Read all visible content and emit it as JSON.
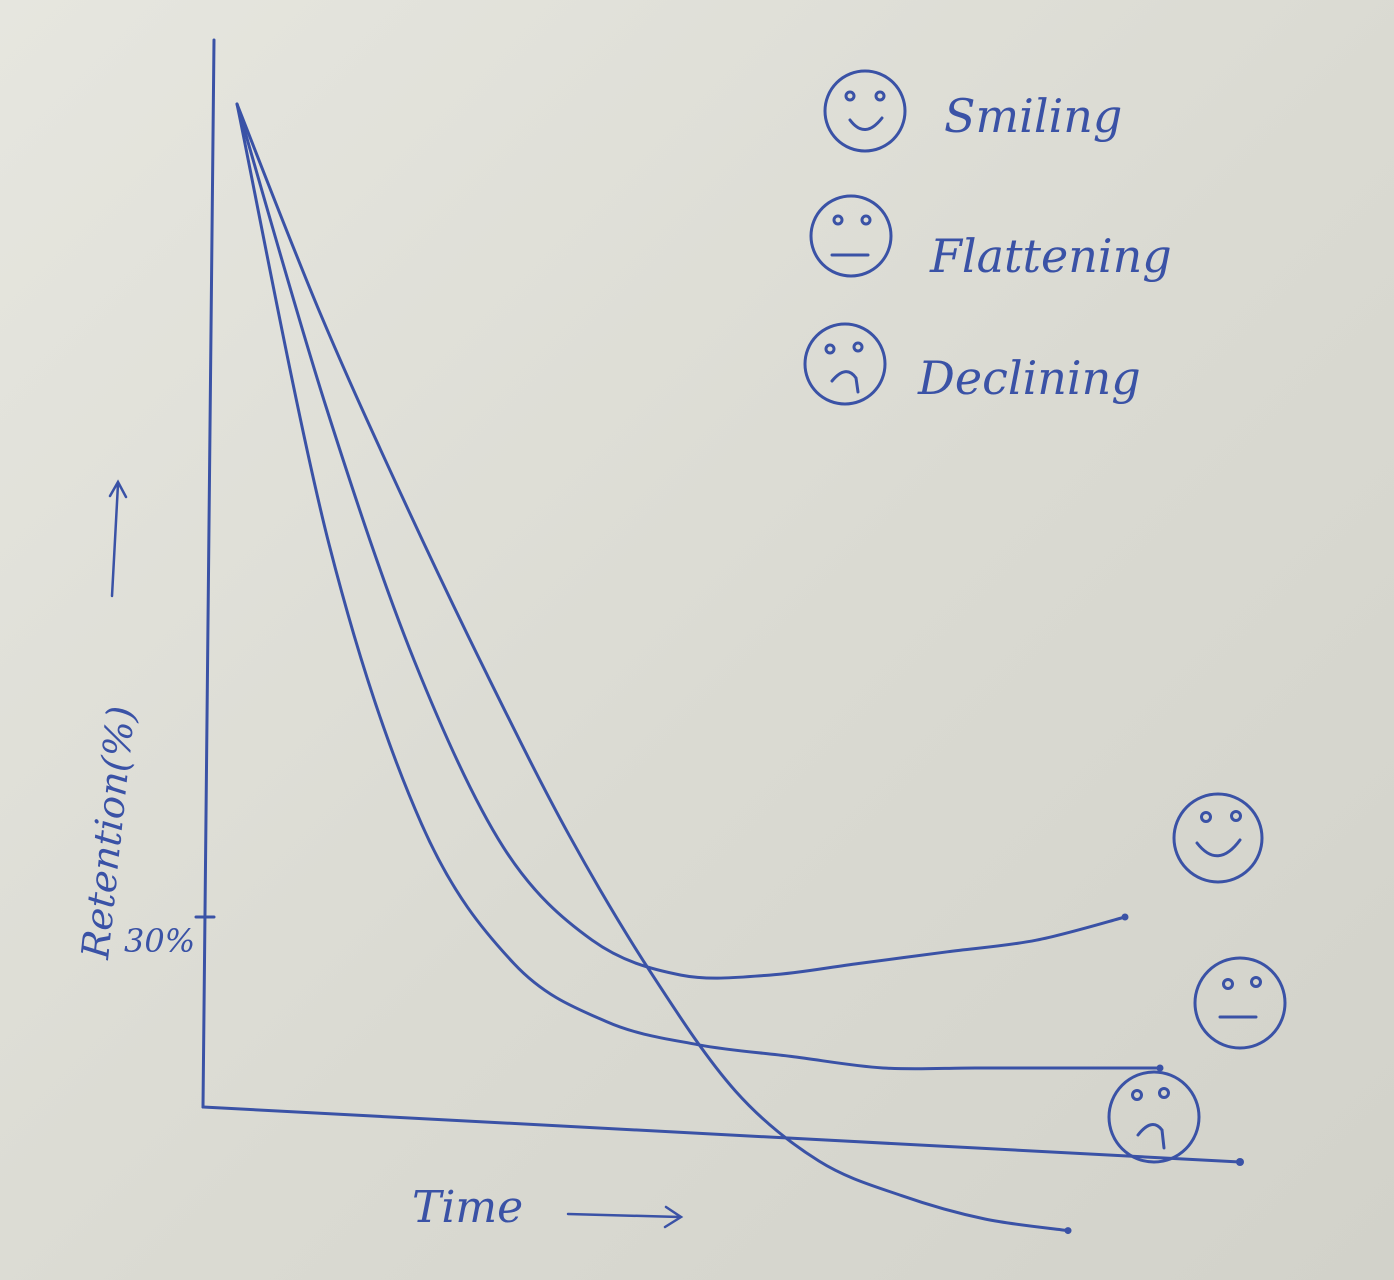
{
  "chart_data": {
    "type": "line",
    "title": "",
    "xlabel": "Time",
    "ylabel": "Retention(%)",
    "x": [
      0,
      1,
      2,
      3,
      4,
      5,
      6,
      7,
      8,
      9,
      10
    ],
    "ylim": [
      0,
      100
    ],
    "y_ticks": [
      {
        "value": 30,
        "label": "30%"
      }
    ],
    "series": [
      {
        "name": "Smiling",
        "icon": "smiling-face-icon",
        "values": [
          100,
          74,
          52,
          36,
          28,
          25,
          25,
          26,
          27,
          28,
          30
        ]
      },
      {
        "name": "Flattening",
        "icon": "neutral-face-icon",
        "values": [
          100,
          62,
          38,
          26,
          21,
          19,
          18,
          17,
          17,
          17,
          17
        ]
      },
      {
        "name": "Declining",
        "icon": "sad-face-icon",
        "values": [
          100,
          82,
          66,
          51,
          37,
          25,
          15,
          9,
          6,
          4,
          3
        ]
      }
    ],
    "legend_position": "top-right",
    "grid": false,
    "colors": {
      "ink": "#3a52a6",
      "paper": "#e3e3dc"
    }
  }
}
